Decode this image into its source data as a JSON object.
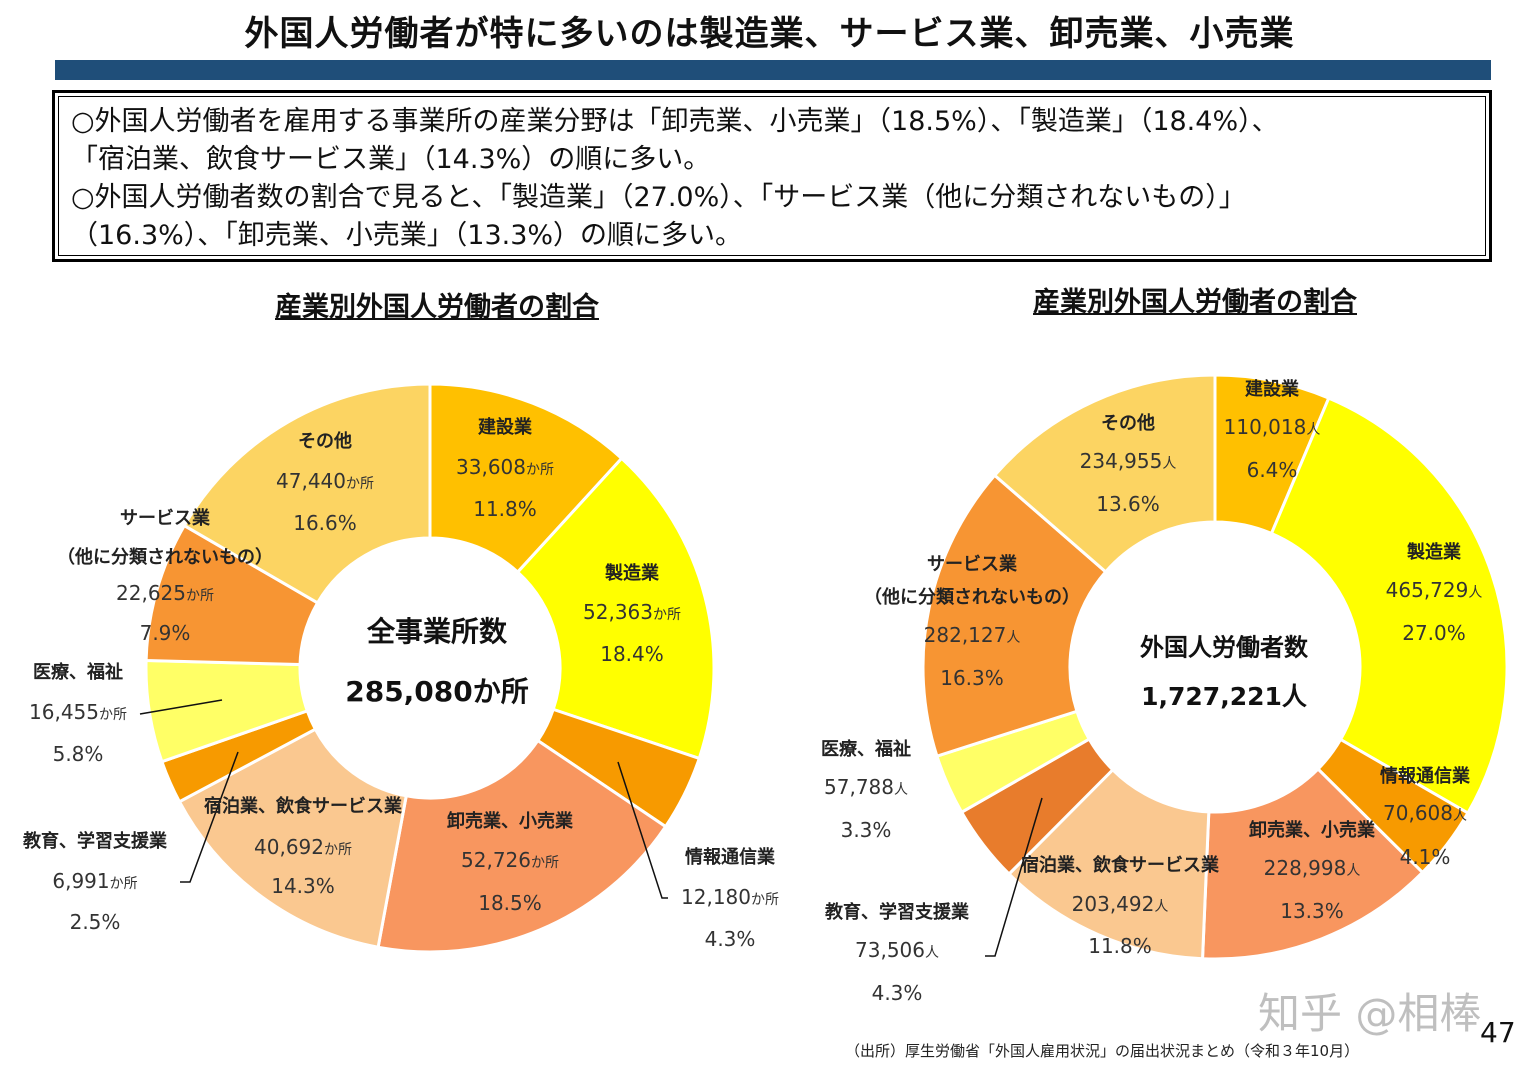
{
  "title": "外国人労働者が特に多いのは製造業、サービス業、卸売業、小売業",
  "summary": [
    "○外国人労働者を雇用する事業所の産業分野は「卸売業、小売業」（18.5%）、「製造業」（18.4%）、",
    "「宿泊業、飲食サービス業」（14.3%）の順に多い。",
    "○外国人労働者数の割合で見ると、「製造業」（27.0%）、「サービス業（他に分類されないもの）」",
    "（16.3%）、「卸売業、小売業」（13.3%）の順に多い。"
  ],
  "colors": {
    "title_bar": "#1F4E79"
  },
  "chart_data": [
    {
      "type": "pie",
      "subtype": "donut",
      "title": "産業別外国人労働者の割合",
      "center_label": "全事業所数",
      "center_value": "285,080か所",
      "unit": "か所",
      "slices": [
        {
          "name": "建設業",
          "count": "33,608",
          "value": 33608,
          "percent": "11.8%",
          "color": "#FFC000"
        },
        {
          "name": "製造業",
          "count": "52,363",
          "value": 52363,
          "percent": "18.4%",
          "color": "#FFFF00"
        },
        {
          "name": "情報通信業",
          "count": "12,180",
          "value": 12180,
          "percent": "4.3%",
          "color": "#F79A00"
        },
        {
          "name": "卸売業、小売業",
          "count": "52,726",
          "value": 52726,
          "percent": "18.5%",
          "color": "#F8965F"
        },
        {
          "name": "宿泊業、飲食サービス業",
          "count": "40,692",
          "value": 40692,
          "percent": "14.3%",
          "color": "#FAC890"
        },
        {
          "name": "教育、学習支援業",
          "count": "6,991",
          "value": 6991,
          "percent": "2.5%",
          "color": "#F79A00"
        },
        {
          "name": "医療、福祉",
          "count": "16,455",
          "value": 16455,
          "percent": "5.8%",
          "color": "#FFFF66"
        },
        {
          "name": "サービス業",
          "name2": "（他に分類されないもの）",
          "count": "22,625",
          "value": 22625,
          "percent": "7.9%",
          "color": "#F79533"
        },
        {
          "name": "その他",
          "count": "47,440",
          "value": 47440,
          "percent": "16.6%",
          "color": "#FCD462"
        }
      ]
    },
    {
      "type": "pie",
      "subtype": "donut",
      "title": "産業別外国人労働者の割合",
      "center_label": "外国人労働者数",
      "center_value": "1,727,221人",
      "unit": "人",
      "slices": [
        {
          "name": "建設業",
          "count": "110,018",
          "value": 110018,
          "percent": "6.4%",
          "color": "#FFC000"
        },
        {
          "name": "製造業",
          "count": "465,729",
          "value": 465729,
          "percent": "27.0%",
          "color": "#FFFF00"
        },
        {
          "name": "情報通信業",
          "count": "70,608",
          "value": 70608,
          "percent": "4.1%",
          "color": "#F79A00"
        },
        {
          "name": "卸売業、小売業",
          "count": "228,998",
          "value": 228998,
          "percent": "13.3%",
          "color": "#F8965F"
        },
        {
          "name": "宿泊業、飲食サービス業",
          "count": "203,492",
          "value": 203492,
          "percent": "11.8%",
          "color": "#FAC890"
        },
        {
          "name": "教育、学習支援業",
          "count": "73,506",
          "value": 73506,
          "percent": "4.3%",
          "color": "#E87C2C"
        },
        {
          "name": "医療、福祉",
          "count": "57,788",
          "value": 57788,
          "percent": "3.3%",
          "color": "#FFFF66"
        },
        {
          "name": "サービス業",
          "name2": "（他に分類されないもの）",
          "count": "282,127",
          "value": 282127,
          "percent": "16.3%",
          "color": "#F79533"
        },
        {
          "name": "その他",
          "count": "234,955",
          "value": 234955,
          "percent": "13.6%",
          "color": "#FCD462"
        }
      ]
    }
  ],
  "source": "（出所）厚生労働省「外国人雇用状況」の届出状況まとめ（令和３年10月）",
  "page_number": "47",
  "watermark": "知乎 @相棒"
}
